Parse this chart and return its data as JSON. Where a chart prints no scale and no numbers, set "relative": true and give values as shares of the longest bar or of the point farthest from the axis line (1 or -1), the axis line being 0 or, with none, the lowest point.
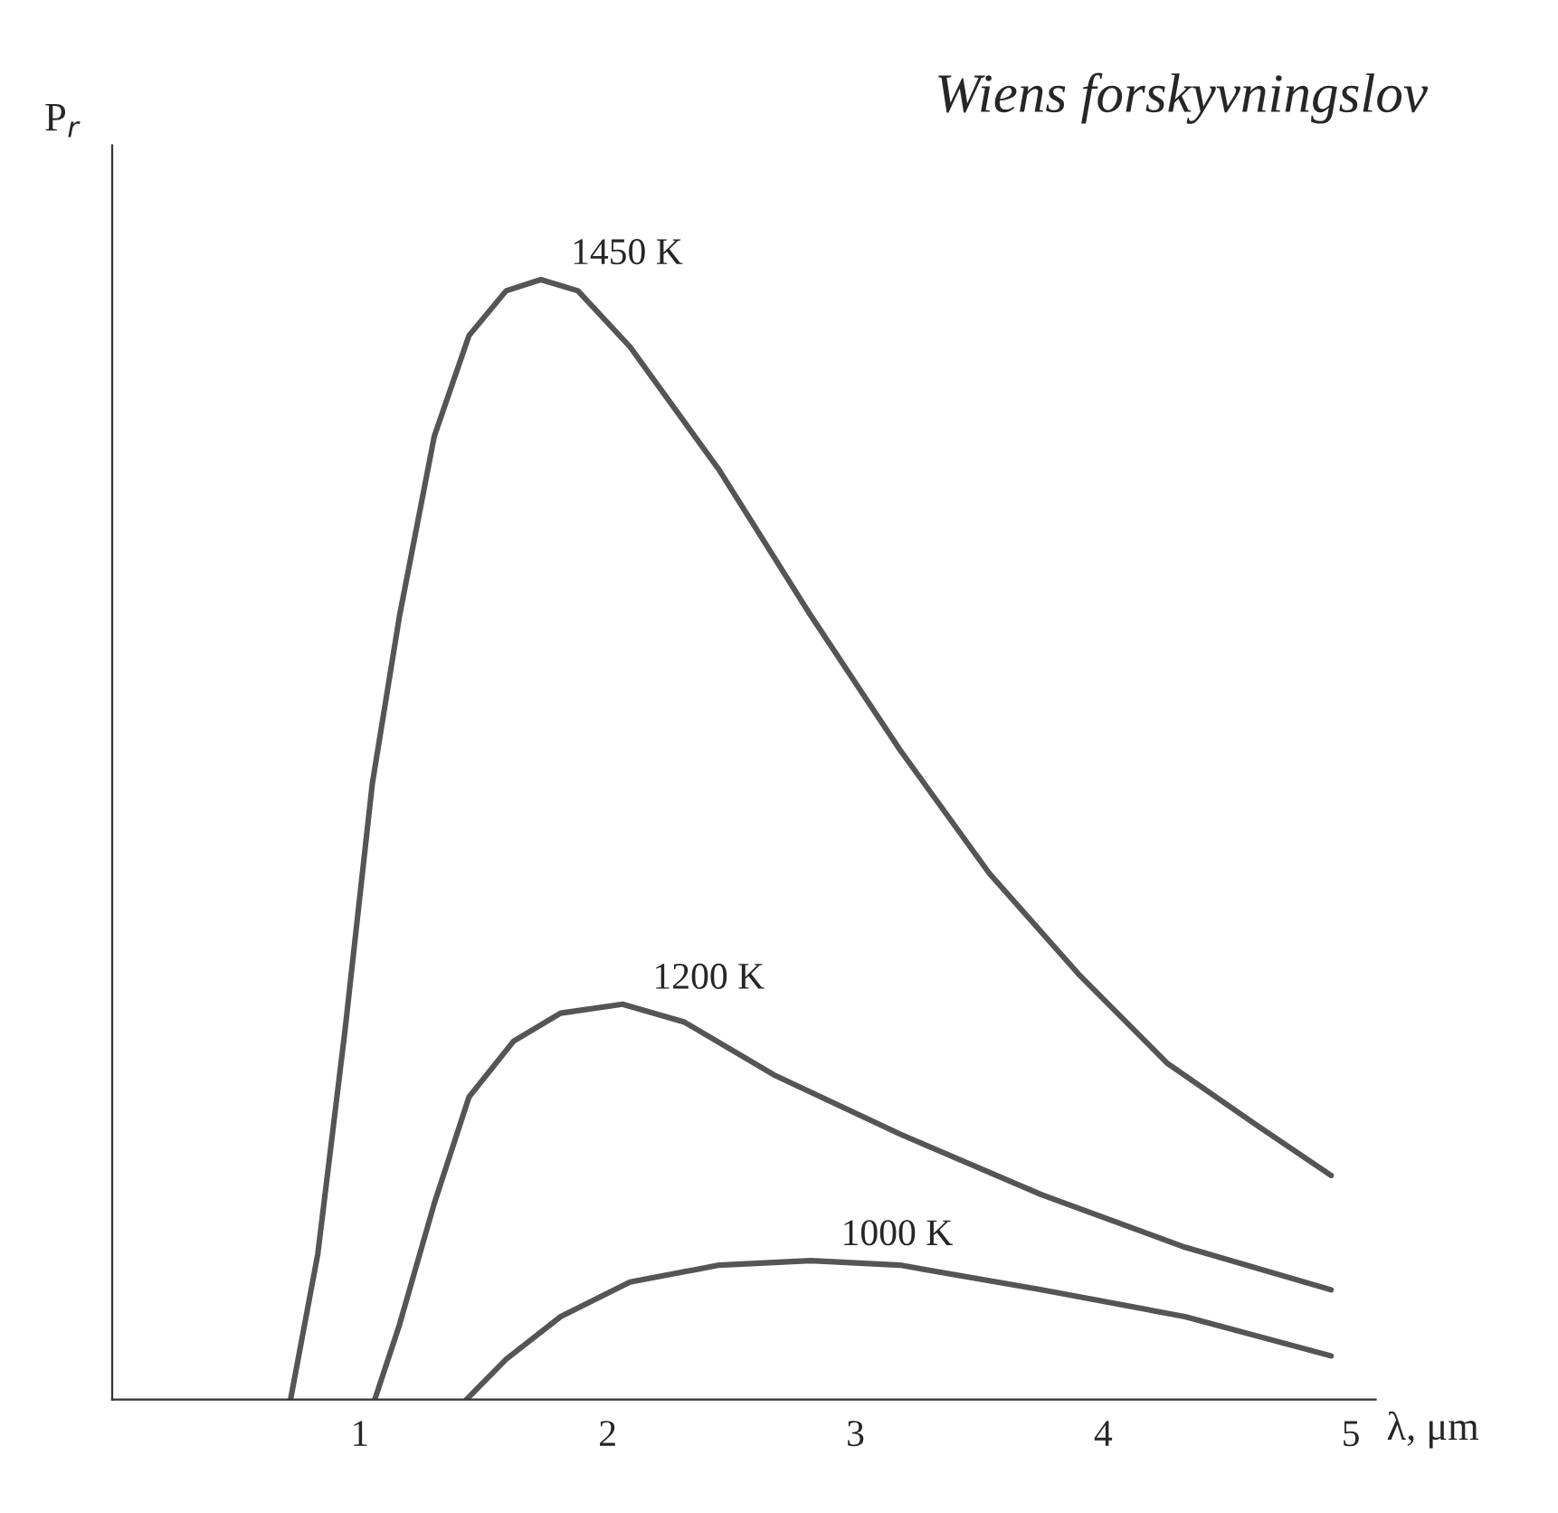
{
  "chart_data": {
    "type": "line",
    "xlabel": "λ, μm",
    "ylabel": "P$_{r}$",
    "relative": true,
    "annotations": [
      "Wiens forskyvningslov"
    ],
    "xlim": [
      0,
      5.1
    ],
    "xticks": [
      1,
      2,
      3,
      4,
      5
    ],
    "grid": false,
    "legend": false,
    "marker": "none",
    "line_style": "solid",
    "series": [
      {
        "name": "1450 K",
        "color": "#555555",
        "x": [
          0.72,
          0.83,
          0.94,
          1.05,
          1.16,
          1.3,
          1.44,
          1.59,
          1.73,
          1.88,
          2.09,
          2.45,
          2.82,
          3.18,
          3.54,
          3.9,
          4.26,
          4.62,
          4.92
        ],
        "values": [
          0,
          0.13,
          0.33,
          0.55,
          0.7,
          0.86,
          0.95,
          0.99,
          1.0,
          0.99,
          0.94,
          0.83,
          0.7,
          0.58,
          0.47,
          0.38,
          0.3,
          0.245,
          0.2
        ]
      },
      {
        "name": "1200 K",
        "color": "#555555",
        "x": [
          1.06,
          1.16,
          1.3,
          1.44,
          1.62,
          1.81,
          2.06,
          2.31,
          2.67,
          3.18,
          3.75,
          4.33,
          4.92
        ],
        "values": [
          0,
          0.067,
          0.175,
          0.27,
          0.32,
          0.345,
          0.353,
          0.337,
          0.29,
          0.237,
          0.183,
          0.136,
          0.098
        ]
      },
      {
        "name": "1000 K",
        "color": "#555555",
        "x": [
          1.43,
          1.59,
          1.81,
          2.09,
          2.45,
          2.82,
          3.18,
          3.75,
          4.33,
          4.92
        ],
        "values": [
          0,
          0.036,
          0.074,
          0.105,
          0.12,
          0.124,
          0.12,
          0.098,
          0.074,
          0.039
        ]
      }
    ]
  }
}
